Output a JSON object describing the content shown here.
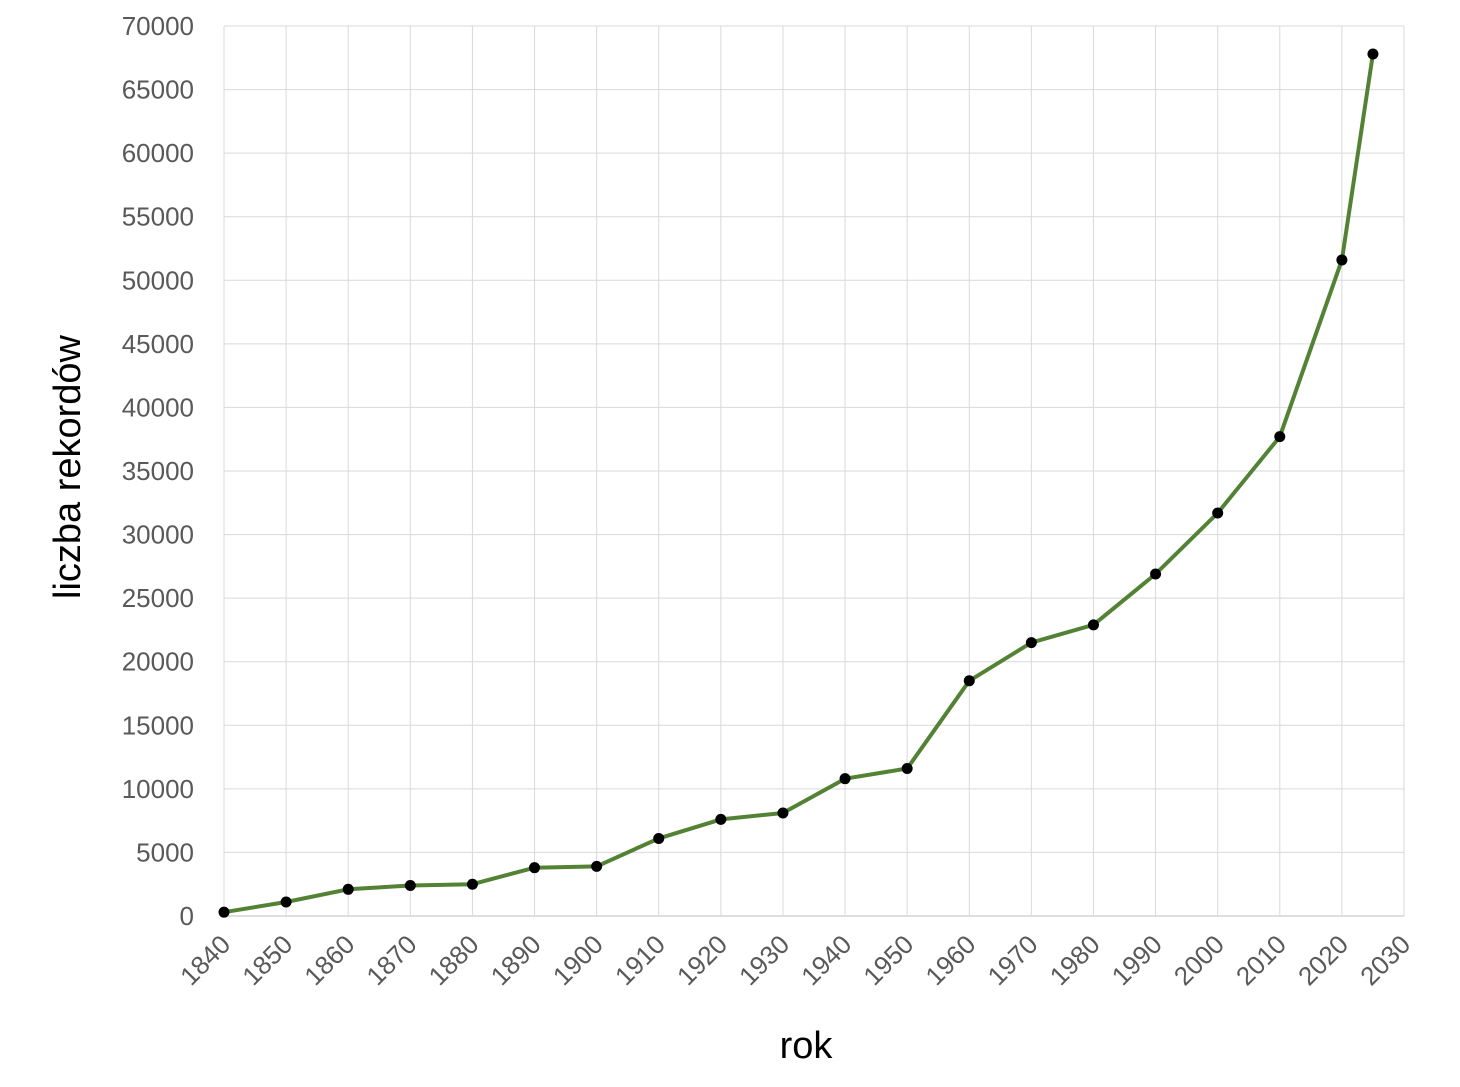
{
  "chart_data": {
    "type": "scatter",
    "title": "",
    "xlabel": "rok",
    "ylabel": "liczba rekordów",
    "xlim": [
      1840,
      2030
    ],
    "ylim": [
      0,
      70000
    ],
    "xticks": [
      1840,
      1850,
      1860,
      1870,
      1880,
      1890,
      1900,
      1910,
      1920,
      1930,
      1940,
      1950,
      1960,
      1970,
      1980,
      1990,
      2000,
      2010,
      2020,
      2030
    ],
    "yticks": [
      0,
      5000,
      10000,
      15000,
      20000,
      25000,
      30000,
      35000,
      40000,
      45000,
      50000,
      55000,
      60000,
      65000,
      70000
    ],
    "grid": true,
    "legend": "none",
    "line_color": "#548235",
    "marker_color": "#000000",
    "series": [
      {
        "x": [
          1840,
          1850,
          1860,
          1870,
          1880,
          1890,
          1900,
          1910,
          1920,
          1930,
          1940,
          1950,
          1960,
          1970,
          1980,
          1990,
          2000,
          2010,
          2020,
          2025
        ],
        "y": [
          300,
          1100,
          2100,
          2400,
          2500,
          3800,
          3900,
          6100,
          7600,
          8100,
          10800,
          11600,
          18500,
          21500,
          22900,
          26900,
          31700,
          37700,
          51600,
          67800
        ]
      }
    ]
  }
}
